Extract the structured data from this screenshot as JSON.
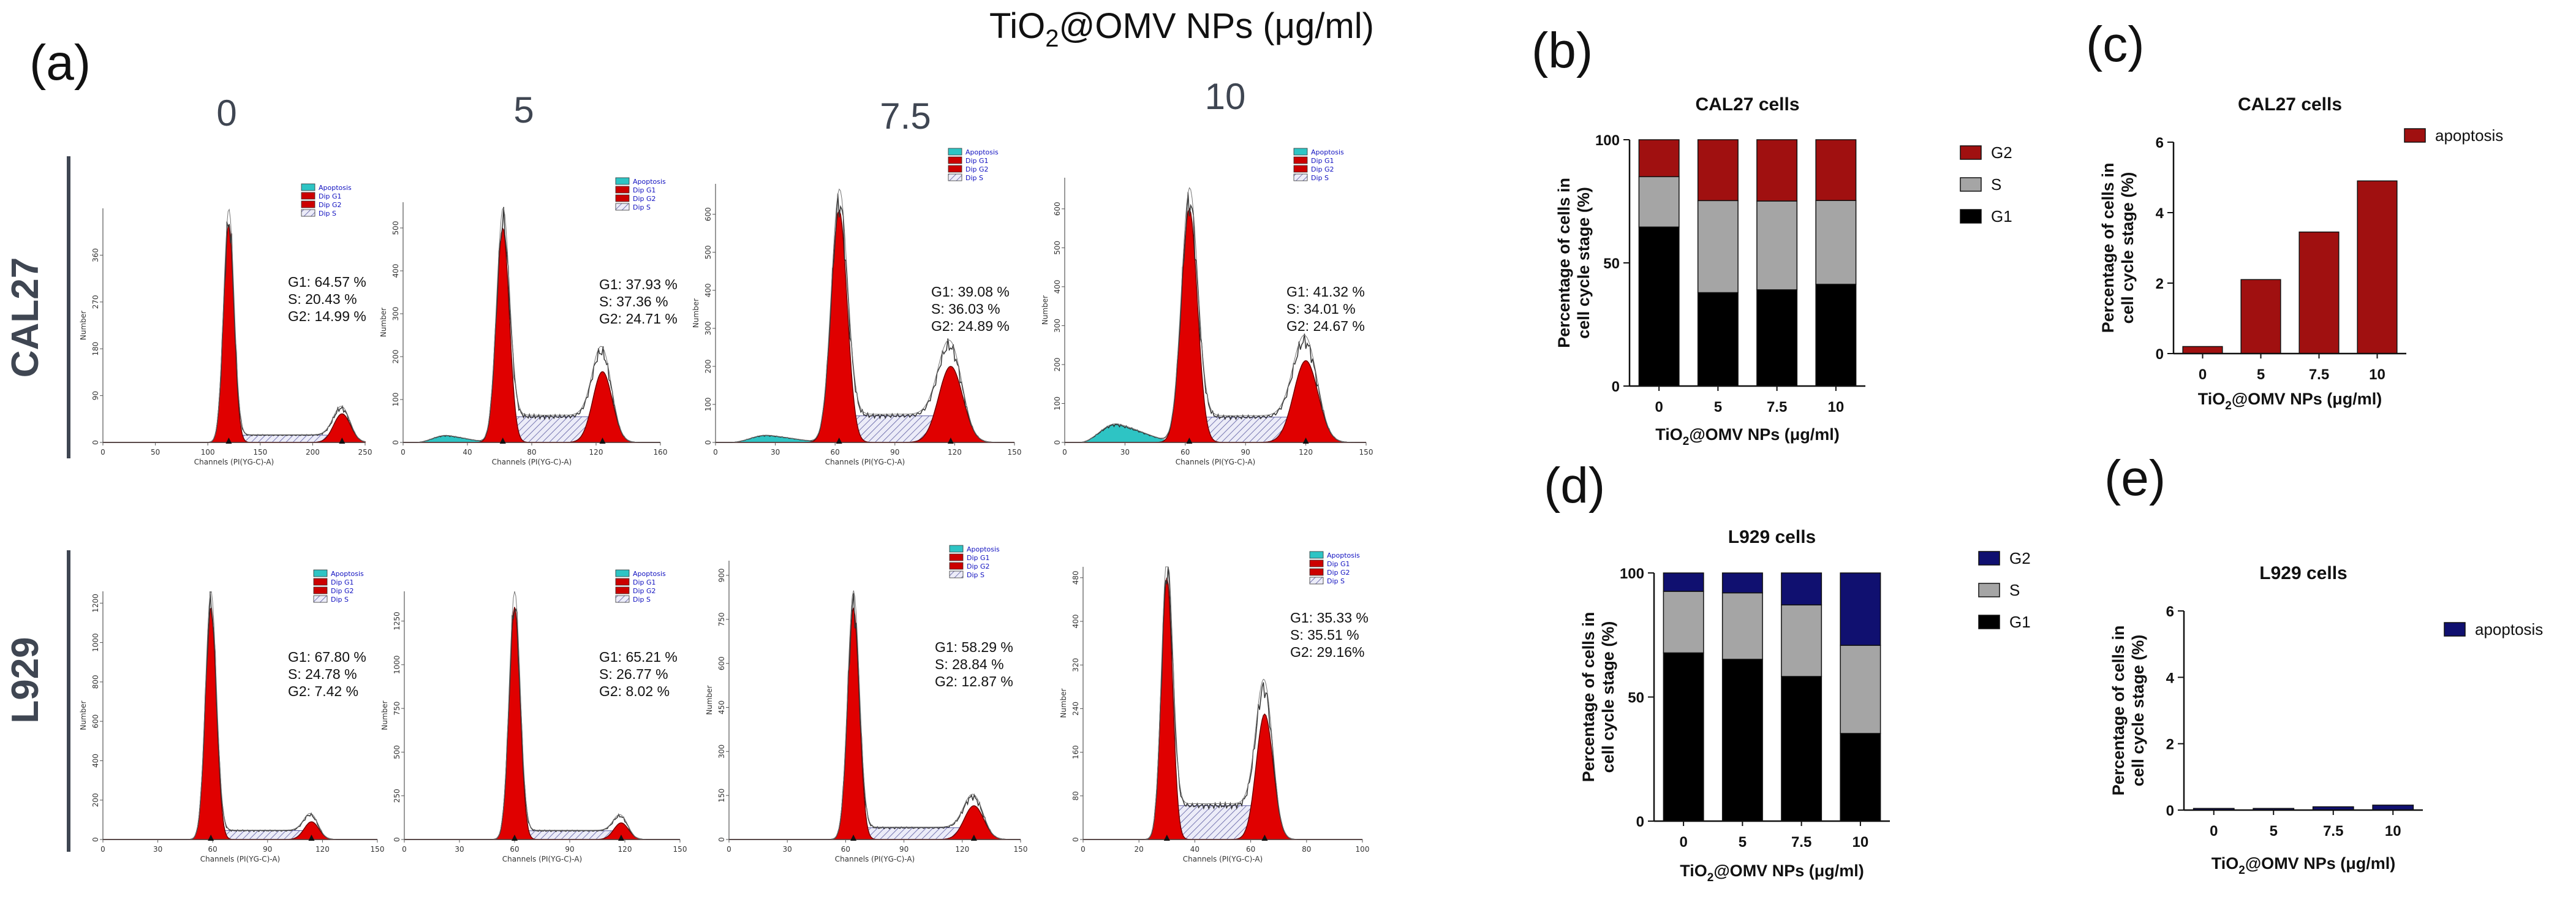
{
  "figure": {
    "panel_letters": [
      "(a)",
      "(b)",
      "(c)",
      "(d)",
      "(e)"
    ],
    "main_title": {
      "prefix": "TiO",
      "sub": "2",
      "suffix": "@OMV NPs (μg/ml)"
    },
    "concentrations": [
      "0",
      "5",
      "7.5",
      "10"
    ],
    "row_labels": [
      "CAL27",
      "L929"
    ],
    "hist_axis_label": "Channels (PI(YG-C)-A)",
    "hist_y_label": "Number",
    "legend_items": [
      {
        "label": "Apoptosis",
        "color": "#2ec4c4"
      },
      {
        "label": "Dip G1",
        "color": "#cc0000"
      },
      {
        "label": "Dip G2",
        "color": "#cc0000"
      },
      {
        "label": "Dip S",
        "color": "#d8d8ee"
      }
    ]
  },
  "histograms": [
    {
      "row": "CAL27",
      "concentration": "0",
      "xticks": [
        "0",
        "50",
        "100",
        "150",
        "200",
        "250"
      ],
      "xmax": 250,
      "yticks": [
        "0",
        "90",
        "180",
        "270",
        "360"
      ],
      "ymax": 450,
      "g1_pos": 120,
      "g1_width": 5,
      "g1_height": 420,
      "g2_pos": 228,
      "g2_width": 8,
      "g2_height": 55,
      "s_level": 14,
      "apoptosis": 0,
      "stats": {
        "g1": "G1: 64.57 %",
        "s": "S:   20.43 %",
        "g2": "G2: 14.99 %"
      }
    },
    {
      "row": "CAL27",
      "concentration": "5",
      "xticks": [
        "0",
        "40",
        "80",
        "120",
        "160"
      ],
      "xmax": 160,
      "yticks": [
        "0",
        "100",
        "200",
        "300",
        "400",
        "500"
      ],
      "ymax": 560,
      "g1_pos": 62,
      "g1_width": 4,
      "g1_height": 500,
      "g2_pos": 124,
      "g2_width": 6,
      "g2_height": 165,
      "s_level": 60,
      "apoptosis": 18,
      "stats": {
        "g1": "G1: 37.93 %",
        "s": "S:   37.36 %",
        "g2": "G2: 24.71 %"
      }
    },
    {
      "row": "CAL27",
      "concentration": "7.5",
      "xticks": [
        "0",
        "30",
        "60",
        "90",
        "120",
        "150"
      ],
      "xmax": 150,
      "yticks": [
        "0",
        "100",
        "200",
        "300",
        "400",
        "500",
        "600"
      ],
      "ymax": 680,
      "g1_pos": 62,
      "g1_width": 4,
      "g1_height": 610,
      "g2_pos": 118,
      "g2_width": 6,
      "g2_height": 200,
      "s_level": 70,
      "apoptosis": 20,
      "stats": {
        "g1": "G1: 39.08 %",
        "s": "S:   36.03 %",
        "g2": "G2: 24.89 %"
      }
    },
    {
      "row": "CAL27",
      "concentration": "10",
      "xticks": [
        "0",
        "30",
        "60",
        "90",
        "120",
        "150"
      ],
      "xmax": 150,
      "yticks": [
        "0",
        "100",
        "200",
        "300",
        "400",
        "500",
        "600"
      ],
      "ymax": 680,
      "g1_pos": 62,
      "g1_width": 4,
      "g1_height": 600,
      "g2_pos": 120,
      "g2_width": 6,
      "g2_height": 210,
      "s_level": 65,
      "apoptosis": 50,
      "stats": {
        "g1": "G1: 41.32 %",
        "s": "S:   34.01 %",
        "g2": "G2: 24.67 %"
      }
    },
    {
      "row": "L929",
      "concentration": "0",
      "xticks": [
        "0",
        "30",
        "60",
        "90",
        "120",
        "150"
      ],
      "xmax": 150,
      "yticks": [
        "0",
        "200",
        "400",
        "600",
        "800",
        "1000",
        "1200"
      ],
      "ymax": 1260,
      "g1_pos": 59,
      "g1_width": 3,
      "g1_height": 1180,
      "g2_pos": 114,
      "g2_width": 4,
      "g2_height": 90,
      "s_level": 45,
      "apoptosis": 0,
      "stats": {
        "g1": "G1: 67.80 %",
        "s": "S:   24.78 %",
        "g2": "G2: 7.42   %"
      }
    },
    {
      "row": "L929",
      "concentration": "5",
      "xticks": [
        "0",
        "30",
        "60",
        "90",
        "120",
        "150"
      ],
      "xmax": 150,
      "yticks": [
        "0",
        "250",
        "500",
        "750",
        "1000",
        "1250"
      ],
      "ymax": 1420,
      "g1_pos": 60,
      "g1_width": 3,
      "g1_height": 1330,
      "g2_pos": 118,
      "g2_width": 4,
      "g2_height": 95,
      "s_level": 50,
      "apoptosis": 0,
      "stats": {
        "g1": "G1: 65.21 %",
        "s": "S:   26.77 %",
        "g2": "G2: 8.02   %"
      }
    },
    {
      "row": "L929",
      "concentration": "7.5",
      "xticks": [
        "0",
        "30",
        "60",
        "90",
        "120",
        "150"
      ],
      "xmax": 150,
      "yticks": [
        "0",
        "150",
        "300",
        "450",
        "600",
        "750",
        "900"
      ],
      "ymax": 950,
      "g1_pos": 64,
      "g1_width": 3,
      "g1_height": 790,
      "g2_pos": 126,
      "g2_width": 5,
      "g2_height": 115,
      "s_level": 40,
      "apoptosis": 0,
      "stats": {
        "g1": "G1: 58.29 %",
        "s": "S:   28.84 %",
        "g2": "G2: 12.87   %"
      }
    },
    {
      "row": "L929",
      "concentration": "10",
      "xticks": [
        "0",
        "20",
        "40",
        "60",
        "80",
        "100"
      ],
      "xmax": 100,
      "yticks": [
        "0",
        "80",
        "160",
        "240",
        "320",
        "400",
        "480"
      ],
      "ymax": 500,
      "g1_pos": 30,
      "g1_width": 2,
      "g1_height": 480,
      "g2_pos": 65,
      "g2_width": 3,
      "g2_height": 230,
      "s_level": 62,
      "apoptosis": 0,
      "stats": {
        "g1": "G1: 35.33 %",
        "s": "S:   35.51 %",
        "g2": "G2: 29.16%"
      }
    }
  ],
  "chart_data": [
    {
      "panel": "(b)",
      "type": "bar",
      "stacked": true,
      "title": "CAL27 cells",
      "xlabel": "TiO2@OMV NPs (μg/ml)",
      "ylabel_lines": [
        "Percentage of cells in",
        "cell cycle stage (%)"
      ],
      "categories": [
        "0",
        "5",
        "7.5",
        "10"
      ],
      "ylim": [
        0,
        100
      ],
      "yticks": [
        0,
        50,
        100
      ],
      "series": [
        {
          "name": "G1",
          "color": "#000000",
          "values": [
            64.57,
            37.93,
            39.08,
            41.32
          ]
        },
        {
          "name": "S",
          "color": "#a5a5a5",
          "values": [
            20.43,
            37.36,
            36.03,
            34.01
          ]
        },
        {
          "name": "G2",
          "color": "#a01010",
          "values": [
            14.99,
            24.71,
            24.89,
            24.67
          ]
        }
      ],
      "legend_order": [
        "G2",
        "S",
        "G1"
      ]
    },
    {
      "panel": "(c)",
      "type": "bar",
      "title": "CAL27 cells",
      "xlabel": "TiO2@OMV NPs (μg/ml)",
      "ylabel_lines": [
        "Percentage of cells in",
        "cell cycle stage (%)"
      ],
      "categories": [
        "0",
        "5",
        "7.5",
        "10"
      ],
      "ylim": [
        0,
        6
      ],
      "yticks": [
        0,
        2,
        4,
        6
      ],
      "series": [
        {
          "name": "apoptosis",
          "color": "#a01010",
          "values": [
            0.2,
            2.1,
            3.45,
            4.9
          ]
        }
      ],
      "legend_order": [
        "apoptosis"
      ]
    },
    {
      "panel": "(d)",
      "type": "bar",
      "stacked": true,
      "title": "L929 cells",
      "xlabel": "TiO2@OMV NPs (μg/ml)",
      "ylabel_lines": [
        "Percentage of cells in",
        "cell cycle stage (%)"
      ],
      "categories": [
        "0",
        "5",
        "7.5",
        "10"
      ],
      "ylim": [
        0,
        100
      ],
      "yticks": [
        0,
        50,
        100
      ],
      "series": [
        {
          "name": "G1",
          "color": "#000000",
          "values": [
            67.8,
            65.21,
            58.29,
            35.33
          ]
        },
        {
          "name": "S",
          "color": "#a5a5a5",
          "values": [
            24.78,
            26.77,
            28.84,
            35.51
          ]
        },
        {
          "name": "G2",
          "color": "#101070",
          "values": [
            7.42,
            8.02,
            12.87,
            29.16
          ]
        }
      ],
      "legend_order": [
        "G2",
        "S",
        "G1"
      ]
    },
    {
      "panel": "(e)",
      "type": "bar",
      "title": "L929 cells",
      "xlabel": "TiO2@OMV NPs (μg/ml)",
      "ylabel_lines": [
        "Percentage of cells in",
        "cell cycle stage (%)"
      ],
      "categories": [
        "0",
        "5",
        "7.5",
        "10"
      ],
      "ylim": [
        0,
        6
      ],
      "yticks": [
        0,
        2,
        4,
        6
      ],
      "series": [
        {
          "name": "apoptosis",
          "color": "#101070",
          "values": [
            0.05,
            0.05,
            0.1,
            0.15
          ]
        }
      ],
      "legend_order": [
        "apoptosis"
      ]
    }
  ]
}
